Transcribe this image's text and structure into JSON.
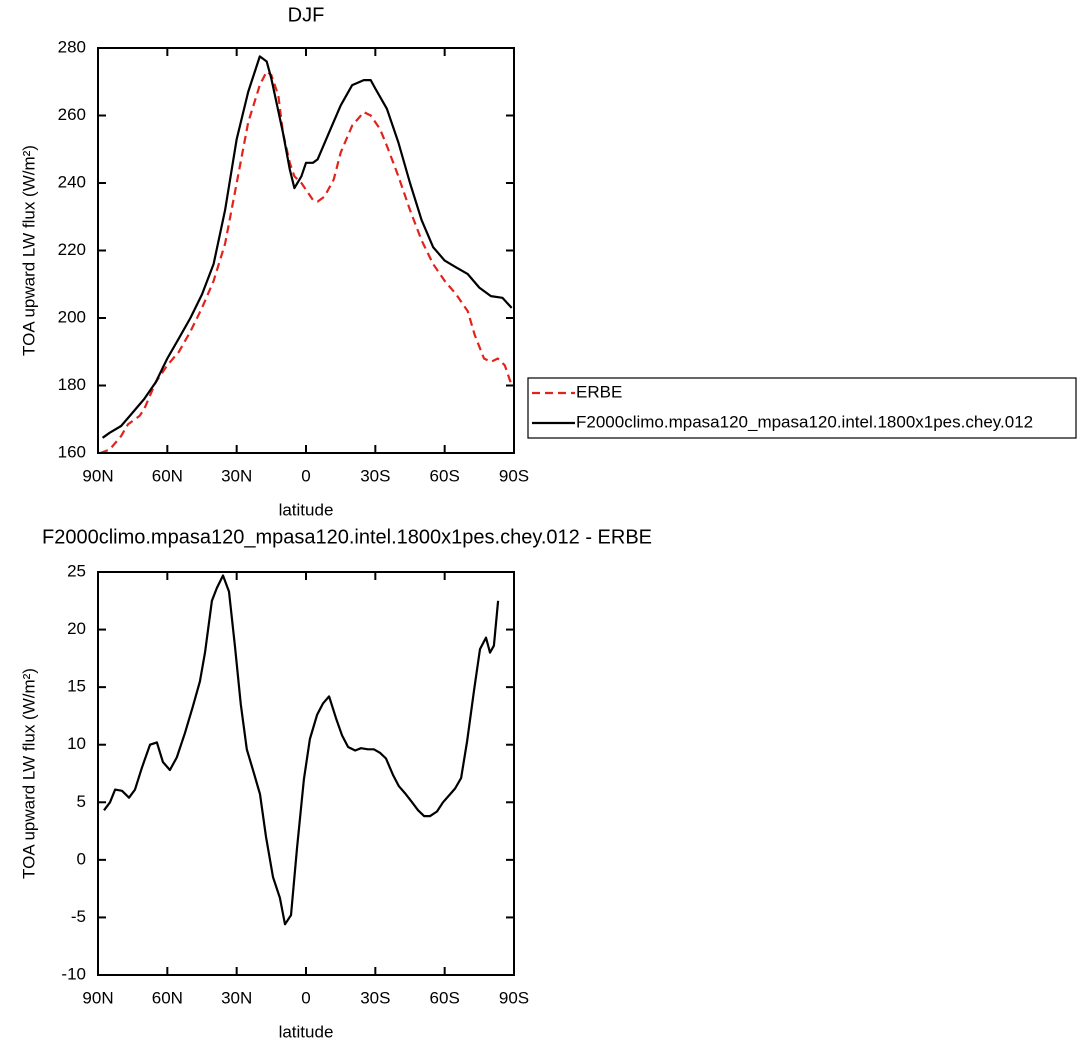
{
  "chart_data": [
    {
      "type": "line",
      "title": "DJF",
      "xlabel": "latitude",
      "ylabel": "TOA upward LW flux (W/m²)",
      "xlim": [
        90,
        -90
      ],
      "xticks": [
        {
          "value": 90,
          "label": "90N"
        },
        {
          "value": 60,
          "label": "60N"
        },
        {
          "value": 30,
          "label": "30N"
        },
        0,
        {
          "value": -30,
          "label": "30S"
        },
        {
          "value": -60,
          "label": "60S"
        },
        {
          "value": -90,
          "label": "90S"
        }
      ],
      "ylim": [
        160,
        280
      ],
      "yticks": [
        160,
        180,
        200,
        220,
        240,
        260,
        280
      ],
      "legend": "right",
      "series": [
        {
          "name": "ERBE",
          "color": "#e3231b",
          "dashed": true,
          "x": [
            89,
            85,
            80,
            77,
            72,
            70,
            65,
            60,
            55,
            50,
            45,
            40,
            35,
            30,
            25,
            20,
            17,
            15,
            12,
            10,
            7,
            5,
            2,
            0,
            -3,
            -5,
            -8,
            -12,
            -15,
            -20,
            -25,
            -28,
            -32,
            -35,
            -40,
            -45,
            -50,
            -55,
            -60,
            -65,
            -70,
            -73,
            -77,
            -80,
            -83,
            -86,
            -89
          ],
          "values": [
            160,
            161,
            165,
            168.5,
            171,
            173,
            181,
            186,
            190,
            196,
            203,
            211,
            222,
            240,
            258,
            269,
            273,
            272,
            266,
            255,
            246,
            242,
            240,
            238,
            235,
            234.5,
            236,
            241,
            249,
            257,
            261,
            260,
            256,
            251,
            242,
            232,
            223,
            216,
            211,
            207,
            202,
            195,
            188,
            187,
            188,
            186,
            180
          ]
        },
        {
          "name": "F2000climo.mpasa120_mpasa120.intel.1800x1pes.chey.012",
          "color": "#000000",
          "dashed": false,
          "x": [
            88,
            85,
            80,
            75,
            70,
            65,
            60,
            55,
            50,
            45,
            40,
            35,
            30,
            25,
            20,
            17,
            15,
            10,
            7,
            5,
            2,
            0,
            -3,
            -5,
            -10,
            -15,
            -20,
            -25,
            -28,
            -30,
            -35,
            -40,
            -45,
            -50,
            -55,
            -60,
            -65,
            -70,
            -75,
            -80,
            -85,
            -89
          ],
          "values": [
            164.5,
            166,
            168,
            172,
            176,
            181,
            188,
            194,
            200,
            207,
            216,
            232,
            253,
            267,
            277.5,
            276,
            271,
            255,
            244,
            238.5,
            242,
            246,
            246,
            247,
            255,
            263,
            269,
            270.5,
            270.5,
            268,
            262,
            252,
            240,
            229,
            221,
            217,
            215,
            213,
            209,
            206.5,
            206,
            203
          ]
        }
      ]
    },
    {
      "type": "line",
      "title": "F2000climo.mpasa120_mpasa120.intel.1800x1pes.chey.012 - ERBE",
      "xlabel": "latitude",
      "ylabel": "TOA upward LW flux (W/m²)",
      "xlim": [
        90,
        -90
      ],
      "xticks": [
        {
          "value": 90,
          "label": "90N"
        },
        {
          "value": 60,
          "label": "60N"
        },
        {
          "value": 30,
          "label": "30N"
        },
        0,
        {
          "value": -30,
          "label": "30S"
        },
        {
          "value": -60,
          "label": "60S"
        },
        {
          "value": -90,
          "label": "90S"
        }
      ],
      "ylim": [
        -10,
        25
      ],
      "yticks": [
        -10,
        -5,
        0,
        5,
        10,
        15,
        20,
        25
      ],
      "series": [
        {
          "color": "#000000",
          "dashed": false,
          "x": [
            87.4,
            84.8,
            82.6,
            79.6,
            76.6,
            74.0,
            71.0,
            67.5,
            64.5,
            61.9,
            58.9,
            55.9,
            52.4,
            49.0,
            45.9,
            43.7,
            40.7,
            38.6,
            35.9,
            33.3,
            30.7,
            28.2,
            25.6,
            22.5,
            19.9,
            17.3,
            14.3,
            11.3,
            9.1,
            6.5,
            3.9,
            0.9,
            -1.7,
            -4.8,
            -7.4,
            -10.0,
            -13.0,
            -15.6,
            -18.2,
            -21.3,
            -23.8,
            -26.8,
            -29.4,
            -32.0,
            -34.6,
            -37.6,
            -40.2,
            -42.8,
            -45.9,
            -48.5,
            -51.1,
            -53.7,
            -56.7,
            -59.3,
            -61.9,
            -64.5,
            -67.1,
            -69.7,
            -72.7,
            -75.3,
            -77.9,
            -79.6,
            -81.3,
            -83.1
          ],
          "values": [
            4.3,
            5,
            6.1,
            6,
            5.4,
            6.1,
            8,
            10,
            10.2,
            8.5,
            7.8,
            8.9,
            11,
            13.3,
            15.5,
            18,
            22.5,
            23.6,
            24.7,
            23.3,
            18.5,
            13.5,
            9.6,
            7.5,
            5.7,
            2,
            -1.5,
            -3.3,
            -5.6,
            -4.8,
            1,
            7,
            10.5,
            12.6,
            13.6,
            14.2,
            12.3,
            10.8,
            9.8,
            9.5,
            9.7,
            9.6,
            9.6,
            9.3,
            8.8,
            7.4,
            6.4,
            5.8,
            5,
            4.3,
            3.8,
            3.8,
            4.2,
            5,
            5.6,
            6.2,
            7.1,
            10.3,
            14.7,
            18.3,
            19.3,
            18,
            18.6,
            22.5
          ]
        }
      ]
    }
  ]
}
